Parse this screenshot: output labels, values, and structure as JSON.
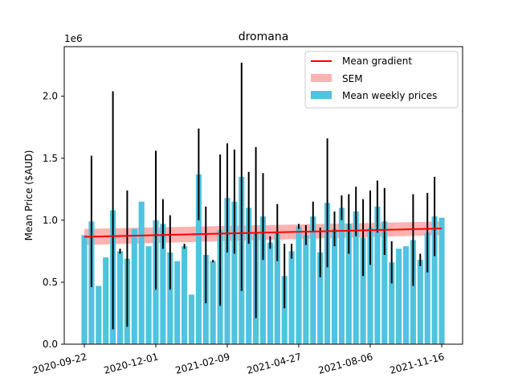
{
  "chart_data": {
    "type": "bar",
    "title": "dromana",
    "ylabel": "Mean Price ($AUD)",
    "xlabel": "",
    "y_multiplier_label": "1e6",
    "ylim": [
      0,
      2.4
    ],
    "y_ticks": [
      "0.0",
      "0.5",
      "1.0",
      "1.5",
      "2.0"
    ],
    "x_ticks": [
      "2020-09-22",
      "2020-12-01",
      "2021-02-09",
      "2021-04-27",
      "2021-08-06",
      "2021-11-16"
    ],
    "x_tick_positions": [
      0,
      10,
      20,
      30,
      40,
      50
    ],
    "grid": false,
    "legend_position": "top-right",
    "bar_color": "#4fc3df",
    "series": [
      {
        "name": "Mean weekly prices",
        "values": [
          0.88,
          0.99,
          0.47,
          0.7,
          1.08,
          0.75,
          0.69,
          0.93,
          1.15,
          0.79,
          1.0,
          0.97,
          0.74,
          0.67,
          0.79,
          0.4,
          1.37,
          0.72,
          0.67,
          0.92,
          1.18,
          1.15,
          1.35,
          1.1,
          0.9,
          1.03,
          0.82,
          0.9,
          0.55,
          0.75,
          0.95,
          0.88,
          1.03,
          0.74,
          1.14,
          0.93,
          1.1,
          0.97,
          1.07,
          0.86,
          0.94,
          1.11,
          0.99,
          0.66,
          0.77,
          0.79,
          0.84,
          0.68,
          0.9,
          1.03,
          1.02
        ],
        "error": [
          0.0,
          0.53,
          0.0,
          0.0,
          0.96,
          0.02,
          0.55,
          0.0,
          0.0,
          0.0,
          0.56,
          0.2,
          0.3,
          0.0,
          0.02,
          0.0,
          0.37,
          0.39,
          0.01,
          0.61,
          0.44,
          0.42,
          0.92,
          0.29,
          0.69,
          0.35,
          0.05,
          0.23,
          0.26,
          0.06,
          0.02,
          0.08,
          0.12,
          0.2,
          0.52,
          0.14,
          0.1,
          0.24,
          0.2,
          0.31,
          0.3,
          0.21,
          0.27,
          0.17,
          0.0,
          0.0,
          0.37,
          0.05,
          0.32,
          0.32,
          0.0
        ]
      },
      {
        "name": "Mean gradient",
        "values": [
          0.866,
          0.933
        ]
      },
      {
        "name": "SEM",
        "lower": [
          0.8,
          0.88
        ],
        "upper": [
          0.93,
          0.99
        ]
      }
    ],
    "legend": [
      "Mean gradient",
      "SEM",
      "Mean weekly prices"
    ]
  }
}
